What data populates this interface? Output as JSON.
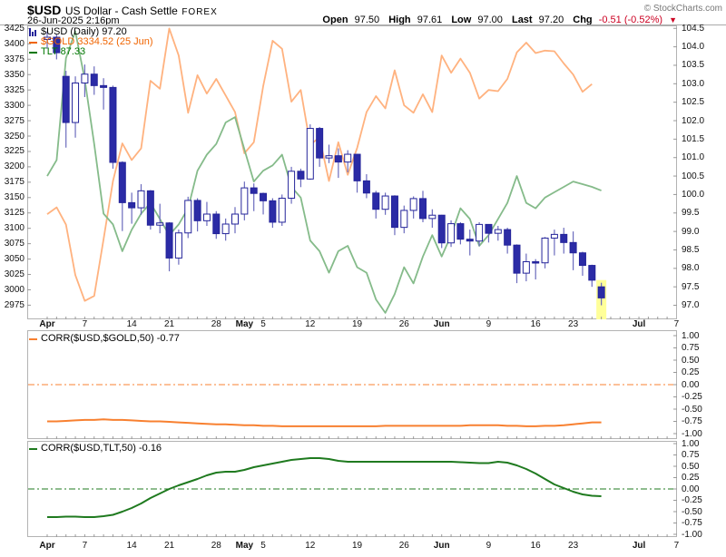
{
  "header": {
    "symbol": "$USD",
    "title": "US Dollar - Cash Settle",
    "exchange": "FOREX",
    "timestamp": "26-Jun-2025 2:16pm",
    "copyright": "© StockCharts.com",
    "quote": {
      "open_label": "Open",
      "open": "97.50",
      "high_label": "High",
      "high": "97.61",
      "low_label": "Low",
      "low": "97.00",
      "last_label": "Last",
      "last": "97.20",
      "chg_label": "Chg",
      "chg": "-0.51 (-0.52%)",
      "chg_direction": "▼"
    }
  },
  "main_legend": {
    "usd": "$USD (Daily) 97.20",
    "gold": "$GOLD 3334.52 (25 Jun)",
    "tlt": "TLT 87.33"
  },
  "panel_legends": {
    "corr_gold": "CORR($USD,$GOLD,50) -0.77",
    "corr_tlt": "CORR($USD,TLT,50) -0.16"
  },
  "colors": {
    "candle_navy": "#2b2ba6",
    "candle_stroke": "#24249a",
    "candle_wick": "#6b6bbd",
    "gold_line": "#ffb27f",
    "tlt_line": "#85bb8a",
    "legend_gold_text": "#f06400",
    "legend_tlt_text": "#007700",
    "corr_gold_line": "#f88030",
    "corr_tlt_line": "#1f7a1f",
    "highlight_yellow": "#ffff99",
    "chg_red": "#cc0022",
    "frame_gray": "#b3b3b3",
    "tick_gray": "#999999"
  },
  "chart_data": [
    {
      "type": "candlestick",
      "title": "$USD US Dollar - Cash Settle FOREX (Daily)",
      "x_ticks": [
        {
          "label": "Apr",
          "idx": 0,
          "bold": true
        },
        {
          "label": "7",
          "idx": 4
        },
        {
          "label": "14",
          "idx": 9
        },
        {
          "label": "21",
          "idx": 13
        },
        {
          "label": "28",
          "idx": 18
        },
        {
          "label": "May",
          "idx": 21,
          "bold": true
        },
        {
          "label": "5",
          "idx": 23
        },
        {
          "label": "12",
          "idx": 28
        },
        {
          "label": "19",
          "idx": 33
        },
        {
          "label": "26",
          "idx": 38
        },
        {
          "label": "Jun",
          "idx": 42,
          "bold": true
        },
        {
          "label": "9",
          "idx": 47
        },
        {
          "label": "16",
          "idx": 52
        },
        {
          "label": "23",
          "idx": 56
        },
        {
          "label": "Jul",
          "idx": 63,
          "bold": true
        },
        {
          "label": "7",
          "idx": 67
        }
      ],
      "usd_axis": {
        "min": 96.62,
        "max": 104.58,
        "tick_labels": [
          "104.5",
          "104.0",
          "103.5",
          "103.0",
          "102.5",
          "102.0",
          "101.5",
          "101.0",
          "100.5",
          "100.0",
          "99.5",
          "99.0",
          "98.5",
          "98.0",
          "97.5",
          "97.0"
        ],
        "tick_values": [
          104.5,
          104.0,
          103.5,
          103.0,
          102.5,
          102.0,
          101.5,
          101.0,
          100.5,
          100.0,
          99.5,
          99.0,
          98.5,
          98.0,
          97.5,
          97.0
        ]
      },
      "gold_axis": {
        "min": 2952,
        "max": 3430,
        "tick_values": [
          3425,
          3400,
          3375,
          3350,
          3325,
          3300,
          3275,
          3250,
          3225,
          3200,
          3175,
          3150,
          3125,
          3100,
          3075,
          3050,
          3025,
          3000,
          2975
        ]
      },
      "tlt_axis": {
        "min": 84.93,
        "max": 90.41
      },
      "dates": [
        "Apr 1",
        "Apr 2",
        "Apr 3",
        "Apr 4",
        "Apr 7",
        "Apr 8",
        "Apr 9",
        "Apr 10",
        "Apr 11",
        "Apr 14",
        "Apr 15",
        "Apr 16",
        "Apr 17",
        "Apr 21",
        "Apr 22",
        "Apr 23",
        "Apr 24",
        "Apr 25",
        "Apr 28",
        "Apr 29",
        "Apr 30",
        "May 1",
        "May 2",
        "May 5",
        "May 6",
        "May 7",
        "May 8",
        "May 9",
        "May 12",
        "May 13",
        "May 14",
        "May 15",
        "May 16",
        "May 19",
        "May 20",
        "May 21",
        "May 22",
        "May 23",
        "May 27",
        "May 28",
        "May 29",
        "May 30",
        "Jun 2",
        "Jun 3",
        "Jun 4",
        "Jun 5",
        "Jun 6",
        "Jun 9",
        "Jun 10",
        "Jun 11",
        "Jun 12",
        "Jun 13",
        "Jun 16",
        "Jun 17",
        "Jun 18",
        "Jun 20",
        "Jun 23",
        "Jun 24",
        "Jun 25",
        "Jun 26"
      ],
      "usd_ohlc": [
        [
          104.2,
          104.42,
          103.95,
          104.26
        ],
        [
          104.26,
          104.35,
          103.66,
          103.84
        ],
        [
          103.2,
          103.35,
          101.27,
          101.95
        ],
        [
          101.95,
          103.2,
          101.54,
          103.02
        ],
        [
          103.02,
          103.52,
          102.64,
          103.26
        ],
        [
          103.26,
          103.47,
          102.7,
          102.95
        ],
        [
          102.95,
          103.15,
          102.3,
          102.9
        ],
        [
          102.9,
          102.95,
          100.7,
          100.87
        ],
        [
          100.87,
          100.9,
          99.01,
          99.78
        ],
        [
          99.78,
          100.05,
          99.21,
          99.64
        ],
        [
          99.64,
          100.28,
          99.45,
          100.1
        ],
        [
          100.1,
          100.12,
          99.05,
          99.17
        ],
        [
          99.17,
          99.75,
          98.95,
          99.23
        ],
        [
          99.23,
          99.25,
          97.92,
          98.28
        ],
        [
          98.28,
          99.05,
          98.1,
          98.96
        ],
        [
          98.96,
          99.94,
          98.82,
          99.84
        ],
        [
          99.84,
          99.9,
          99.0,
          99.29
        ],
        [
          99.29,
          99.8,
          99.15,
          99.47
        ],
        [
          99.47,
          99.55,
          98.8,
          98.94
        ],
        [
          98.94,
          99.35,
          98.75,
          99.2
        ],
        [
          99.2,
          99.66,
          98.95,
          99.47
        ],
        [
          99.47,
          100.35,
          99.3,
          100.18
        ],
        [
          100.18,
          100.3,
          99.55,
          100.03
        ],
        [
          100.03,
          100.05,
          99.46,
          99.83
        ],
        [
          99.83,
          99.9,
          99.1,
          99.25
        ],
        [
          99.25,
          100.0,
          99.15,
          99.9
        ],
        [
          99.9,
          100.75,
          99.75,
          100.63
        ],
        [
          100.63,
          100.7,
          100.2,
          100.42
        ],
        [
          100.42,
          101.9,
          100.4,
          101.79
        ],
        [
          101.79,
          101.83,
          100.75,
          100.99
        ],
        [
          100.99,
          101.35,
          100.85,
          101.05
        ],
        [
          101.05,
          101.25,
          100.45,
          100.88
        ],
        [
          100.88,
          101.2,
          100.6,
          101.09
        ],
        [
          101.09,
          101.1,
          100.05,
          100.37
        ],
        [
          100.37,
          100.55,
          99.9,
          100.04
        ],
        [
          100.04,
          100.1,
          99.35,
          99.6
        ],
        [
          99.6,
          100.05,
          99.45,
          99.96
        ],
        [
          99.96,
          99.98,
          98.9,
          99.11
        ],
        [
          99.11,
          99.7,
          98.95,
          99.57
        ],
        [
          99.57,
          99.95,
          99.35,
          99.89
        ],
        [
          99.89,
          100.1,
          99.25,
          99.35
        ],
        [
          99.35,
          99.6,
          99.1,
          99.44
        ],
        [
          99.44,
          99.45,
          98.55,
          98.69
        ],
        [
          98.69,
          99.3,
          98.58,
          99.21
        ],
        [
          99.21,
          99.25,
          98.65,
          98.79
        ],
        [
          98.79,
          99.05,
          98.35,
          98.74
        ],
        [
          98.74,
          99.25,
          98.6,
          99.19
        ],
        [
          99.19,
          99.2,
          98.7,
          98.95
        ],
        [
          98.95,
          99.15,
          98.75,
          99.05
        ],
        [
          99.05,
          99.1,
          98.4,
          98.63
        ],
        [
          98.63,
          98.65,
          97.6,
          97.87
        ],
        [
          97.87,
          98.4,
          97.65,
          98.18
        ],
        [
          98.18,
          98.25,
          97.7,
          98.15
        ],
        [
          98.15,
          98.85,
          98.0,
          98.82
        ],
        [
          98.82,
          99.05,
          98.35,
          98.92
        ],
        [
          98.92,
          99.1,
          98.4,
          98.7
        ],
        [
          98.7,
          99.0,
          97.95,
          98.42
        ],
        [
          98.42,
          98.45,
          97.8,
          98.08
        ],
        [
          98.08,
          98.1,
          97.5,
          97.68
        ],
        [
          97.5,
          97.61,
          97.0,
          97.2
        ]
      ],
      "highlight_last": true,
      "gold": [
        3123,
        3134,
        3106,
        3024,
        2982,
        2990,
        3082,
        3177,
        3238,
        3211,
        3230,
        3340,
        3327,
        3425,
        3381,
        3288,
        3349,
        3319,
        3343,
        3316,
        3289,
        3222,
        3240,
        3331,
        3405,
        3392,
        3306,
        3325,
        3236,
        3248,
        3177,
        3240,
        3187,
        3231,
        3289,
        3315,
        3295,
        3357,
        3300,
        3288,
        3318,
        3289,
        3381,
        3353,
        3376,
        3353,
        3311,
        3325,
        3323,
        3343,
        3386,
        3402,
        3385,
        3389,
        3388,
        3368,
        3350,
        3322,
        3334.52,
        null
      ],
      "tlt": [
        87.6,
        87.9,
        89.8,
        90.3,
        89.4,
        88.2,
        86.9,
        86.7,
        86.2,
        86.6,
        86.9,
        87.1,
        86.8,
        86.5,
        86.7,
        87.0,
        87.7,
        88.0,
        88.2,
        88.6,
        88.7,
        88.1,
        87.5,
        87.7,
        87.8,
        88.0,
        87.4,
        87.2,
        86.4,
        86.2,
        85.8,
        86.2,
        86.3,
        85.9,
        85.8,
        85.3,
        85.05,
        85.4,
        85.9,
        85.6,
        86.1,
        86.5,
        86.1,
        86.5,
        87.0,
        86.8,
        86.3,
        86.5,
        86.8,
        87.1,
        87.6,
        87.1,
        87.0,
        87.2,
        87.3,
        87.4,
        87.5,
        87.45,
        87.4,
        87.33
      ]
    },
    {
      "type": "line",
      "name": "CORR($USD,$GOLD,50)",
      "last_value": -0.77,
      "ylim": [
        -1.0,
        1.0
      ],
      "yticks": [
        "1.00",
        "0.75",
        "0.50",
        "0.25",
        "0.00",
        "-0.25",
        "-0.50",
        "-0.75",
        "-1.00"
      ],
      "ytick_values": [
        1.0,
        0.75,
        0.5,
        0.25,
        0.0,
        -0.25,
        -0.5,
        -0.75,
        -1.0
      ],
      "zero_line_style": "dash-dot",
      "values": [
        -0.75,
        -0.75,
        -0.74,
        -0.73,
        -0.72,
        -0.72,
        -0.71,
        -0.72,
        -0.72,
        -0.73,
        -0.74,
        -0.75,
        -0.75,
        -0.76,
        -0.77,
        -0.78,
        -0.79,
        -0.8,
        -0.81,
        -0.81,
        -0.82,
        -0.83,
        -0.83,
        -0.84,
        -0.84,
        -0.85,
        -0.85,
        -0.85,
        -0.85,
        -0.85,
        -0.85,
        -0.85,
        -0.85,
        -0.85,
        -0.85,
        -0.85,
        -0.84,
        -0.84,
        -0.84,
        -0.84,
        -0.84,
        -0.84,
        -0.84,
        -0.84,
        -0.84,
        -0.83,
        -0.83,
        -0.83,
        -0.83,
        -0.84,
        -0.84,
        -0.85,
        -0.85,
        -0.84,
        -0.84,
        -0.83,
        -0.81,
        -0.79,
        -0.77,
        -0.77
      ]
    },
    {
      "type": "line",
      "name": "CORR($USD,TLT,50)",
      "last_value": -0.16,
      "ylim": [
        -1.0,
        1.0
      ],
      "yticks": [
        "1.00",
        "0.75",
        "0.50",
        "0.25",
        "0.00",
        "-0.25",
        "-0.50",
        "-0.75",
        "-1.00"
      ],
      "ytick_values": [
        1.0,
        0.75,
        0.5,
        0.25,
        0.0,
        -0.25,
        -0.5,
        -0.75,
        -1.0
      ],
      "zero_line_style": "dash-dot",
      "values": [
        -0.62,
        -0.62,
        -0.61,
        -0.61,
        -0.62,
        -0.62,
        -0.6,
        -0.57,
        -0.5,
        -0.42,
        -0.32,
        -0.2,
        -0.1,
        0.0,
        0.08,
        0.15,
        0.22,
        0.3,
        0.36,
        0.38,
        0.38,
        0.42,
        0.48,
        0.52,
        0.56,
        0.6,
        0.64,
        0.66,
        0.68,
        0.68,
        0.66,
        0.62,
        0.6,
        0.6,
        0.6,
        0.6,
        0.6,
        0.6,
        0.6,
        0.6,
        0.6,
        0.6,
        0.6,
        0.6,
        0.59,
        0.58,
        0.57,
        0.57,
        0.6,
        0.58,
        0.52,
        0.44,
        0.34,
        0.22,
        0.1,
        0.02,
        -0.06,
        -0.12,
        -0.15,
        -0.16
      ]
    }
  ],
  "layout_geometry": {
    "x_start": 22,
    "x_step": 10.35,
    "n_slots": 68
  }
}
